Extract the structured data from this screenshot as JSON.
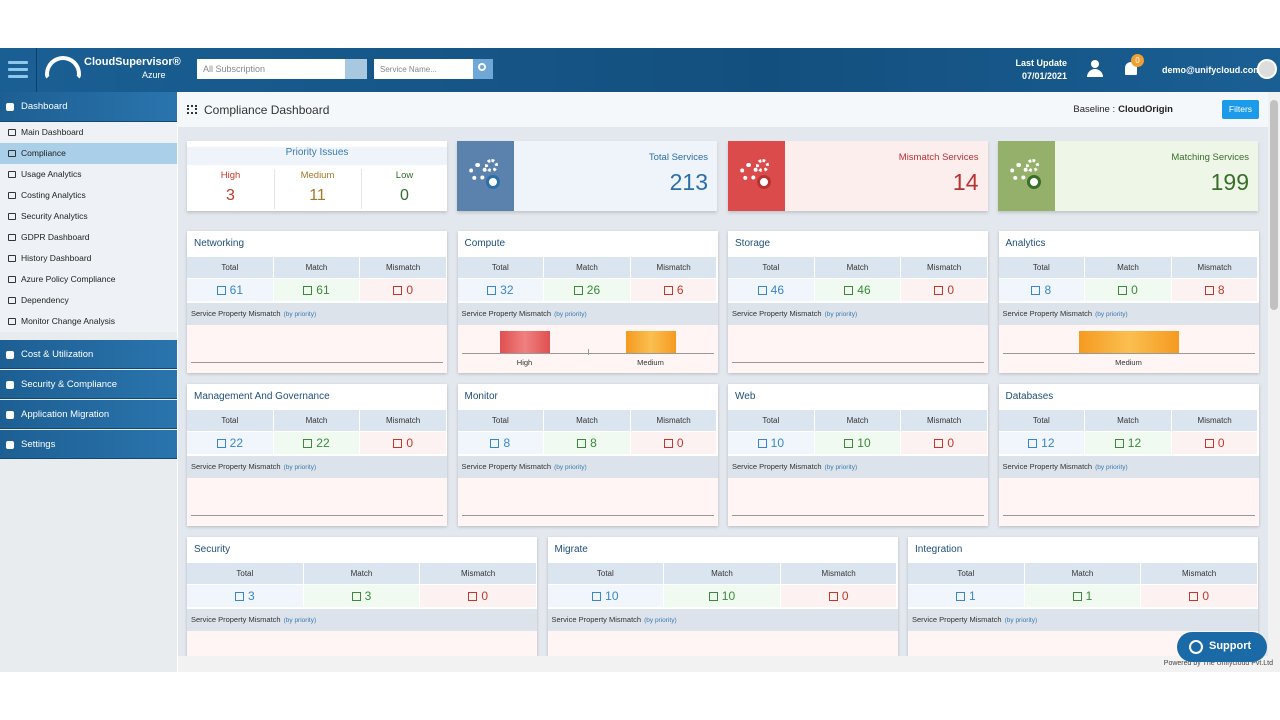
{
  "header": {
    "logo_name": "CloudSupervisor®",
    "logo_sub": "Azure",
    "subscription_placeholder": "All Subscription",
    "service_placeholder": "Service Name...",
    "last_update_label": "Last Update",
    "last_update_date": "07/01/2021",
    "notification_count": "0",
    "user": "demo@unifycloud.com"
  },
  "sidebar": {
    "sections": [
      {
        "label": "Dashboard",
        "items": [
          "Main Dashboard",
          "Compliance",
          "Usage Analytics",
          "Costing Analytics",
          "Security Analytics",
          "GDPR Dashboard",
          "History Dashboard",
          "Azure Policy Compliance",
          "Dependency",
          "Monitor Change Analysis"
        ],
        "selected_item": 1
      },
      {
        "label": "Cost & Utilization"
      },
      {
        "label": "Security & Compliance"
      },
      {
        "label": "Application Migration"
      },
      {
        "label": "Settings"
      }
    ]
  },
  "page": {
    "title": "Compliance Dashboard",
    "baseline_label": "Baseline :",
    "baseline_value": "CloudOrigin",
    "filters": "Filters"
  },
  "summary": {
    "priority_title": "Priority Issues",
    "priorities": [
      {
        "label": "High",
        "value": 3
      },
      {
        "label": "Medium",
        "value": 11
      },
      {
        "label": "Low",
        "value": 0
      }
    ],
    "cards": [
      {
        "label": "Total Services",
        "value": 213
      },
      {
        "label": "Mismatch Services",
        "value": 14
      },
      {
        "label": "Matching Services",
        "value": 199
      }
    ]
  },
  "service_card": {
    "columns": [
      "Total",
      "Match",
      "Mismatch"
    ],
    "section_label": "Service Property Mismatch",
    "section_note": "(by priority)"
  },
  "services": [
    {
      "name": "Networking",
      "total": 61,
      "match": 61,
      "mismatch": 0,
      "bars": []
    },
    {
      "name": "Compute",
      "total": 32,
      "match": 26,
      "mismatch": 6,
      "bars": [
        "High",
        "Medium"
      ]
    },
    {
      "name": "Storage",
      "total": 46,
      "match": 46,
      "mismatch": 0,
      "bars": []
    },
    {
      "name": "Analytics",
      "total": 8,
      "match": 0,
      "mismatch": 8,
      "bars": [
        "Medium"
      ]
    },
    {
      "name": "Management And Governance",
      "total": 22,
      "match": 22,
      "mismatch": 0,
      "bars": []
    },
    {
      "name": "Monitor",
      "total": 8,
      "match": 8,
      "mismatch": 0,
      "bars": []
    },
    {
      "name": "Web",
      "total": 10,
      "match": 10,
      "mismatch": 0,
      "bars": []
    },
    {
      "name": "Databases",
      "total": 12,
      "match": 12,
      "mismatch": 0,
      "bars": []
    },
    {
      "name": "Security",
      "total": 3,
      "match": 3,
      "mismatch": 0,
      "bars": []
    },
    {
      "name": "Migrate",
      "total": 10,
      "match": 10,
      "mismatch": 0,
      "bars": []
    },
    {
      "name": "Integration",
      "total": 1,
      "match": 1,
      "mismatch": 0,
      "bars": []
    }
  ],
  "footer": {
    "powered_by": "Powered by The Unifycloud Pvt.Ltd",
    "support": "Support"
  }
}
